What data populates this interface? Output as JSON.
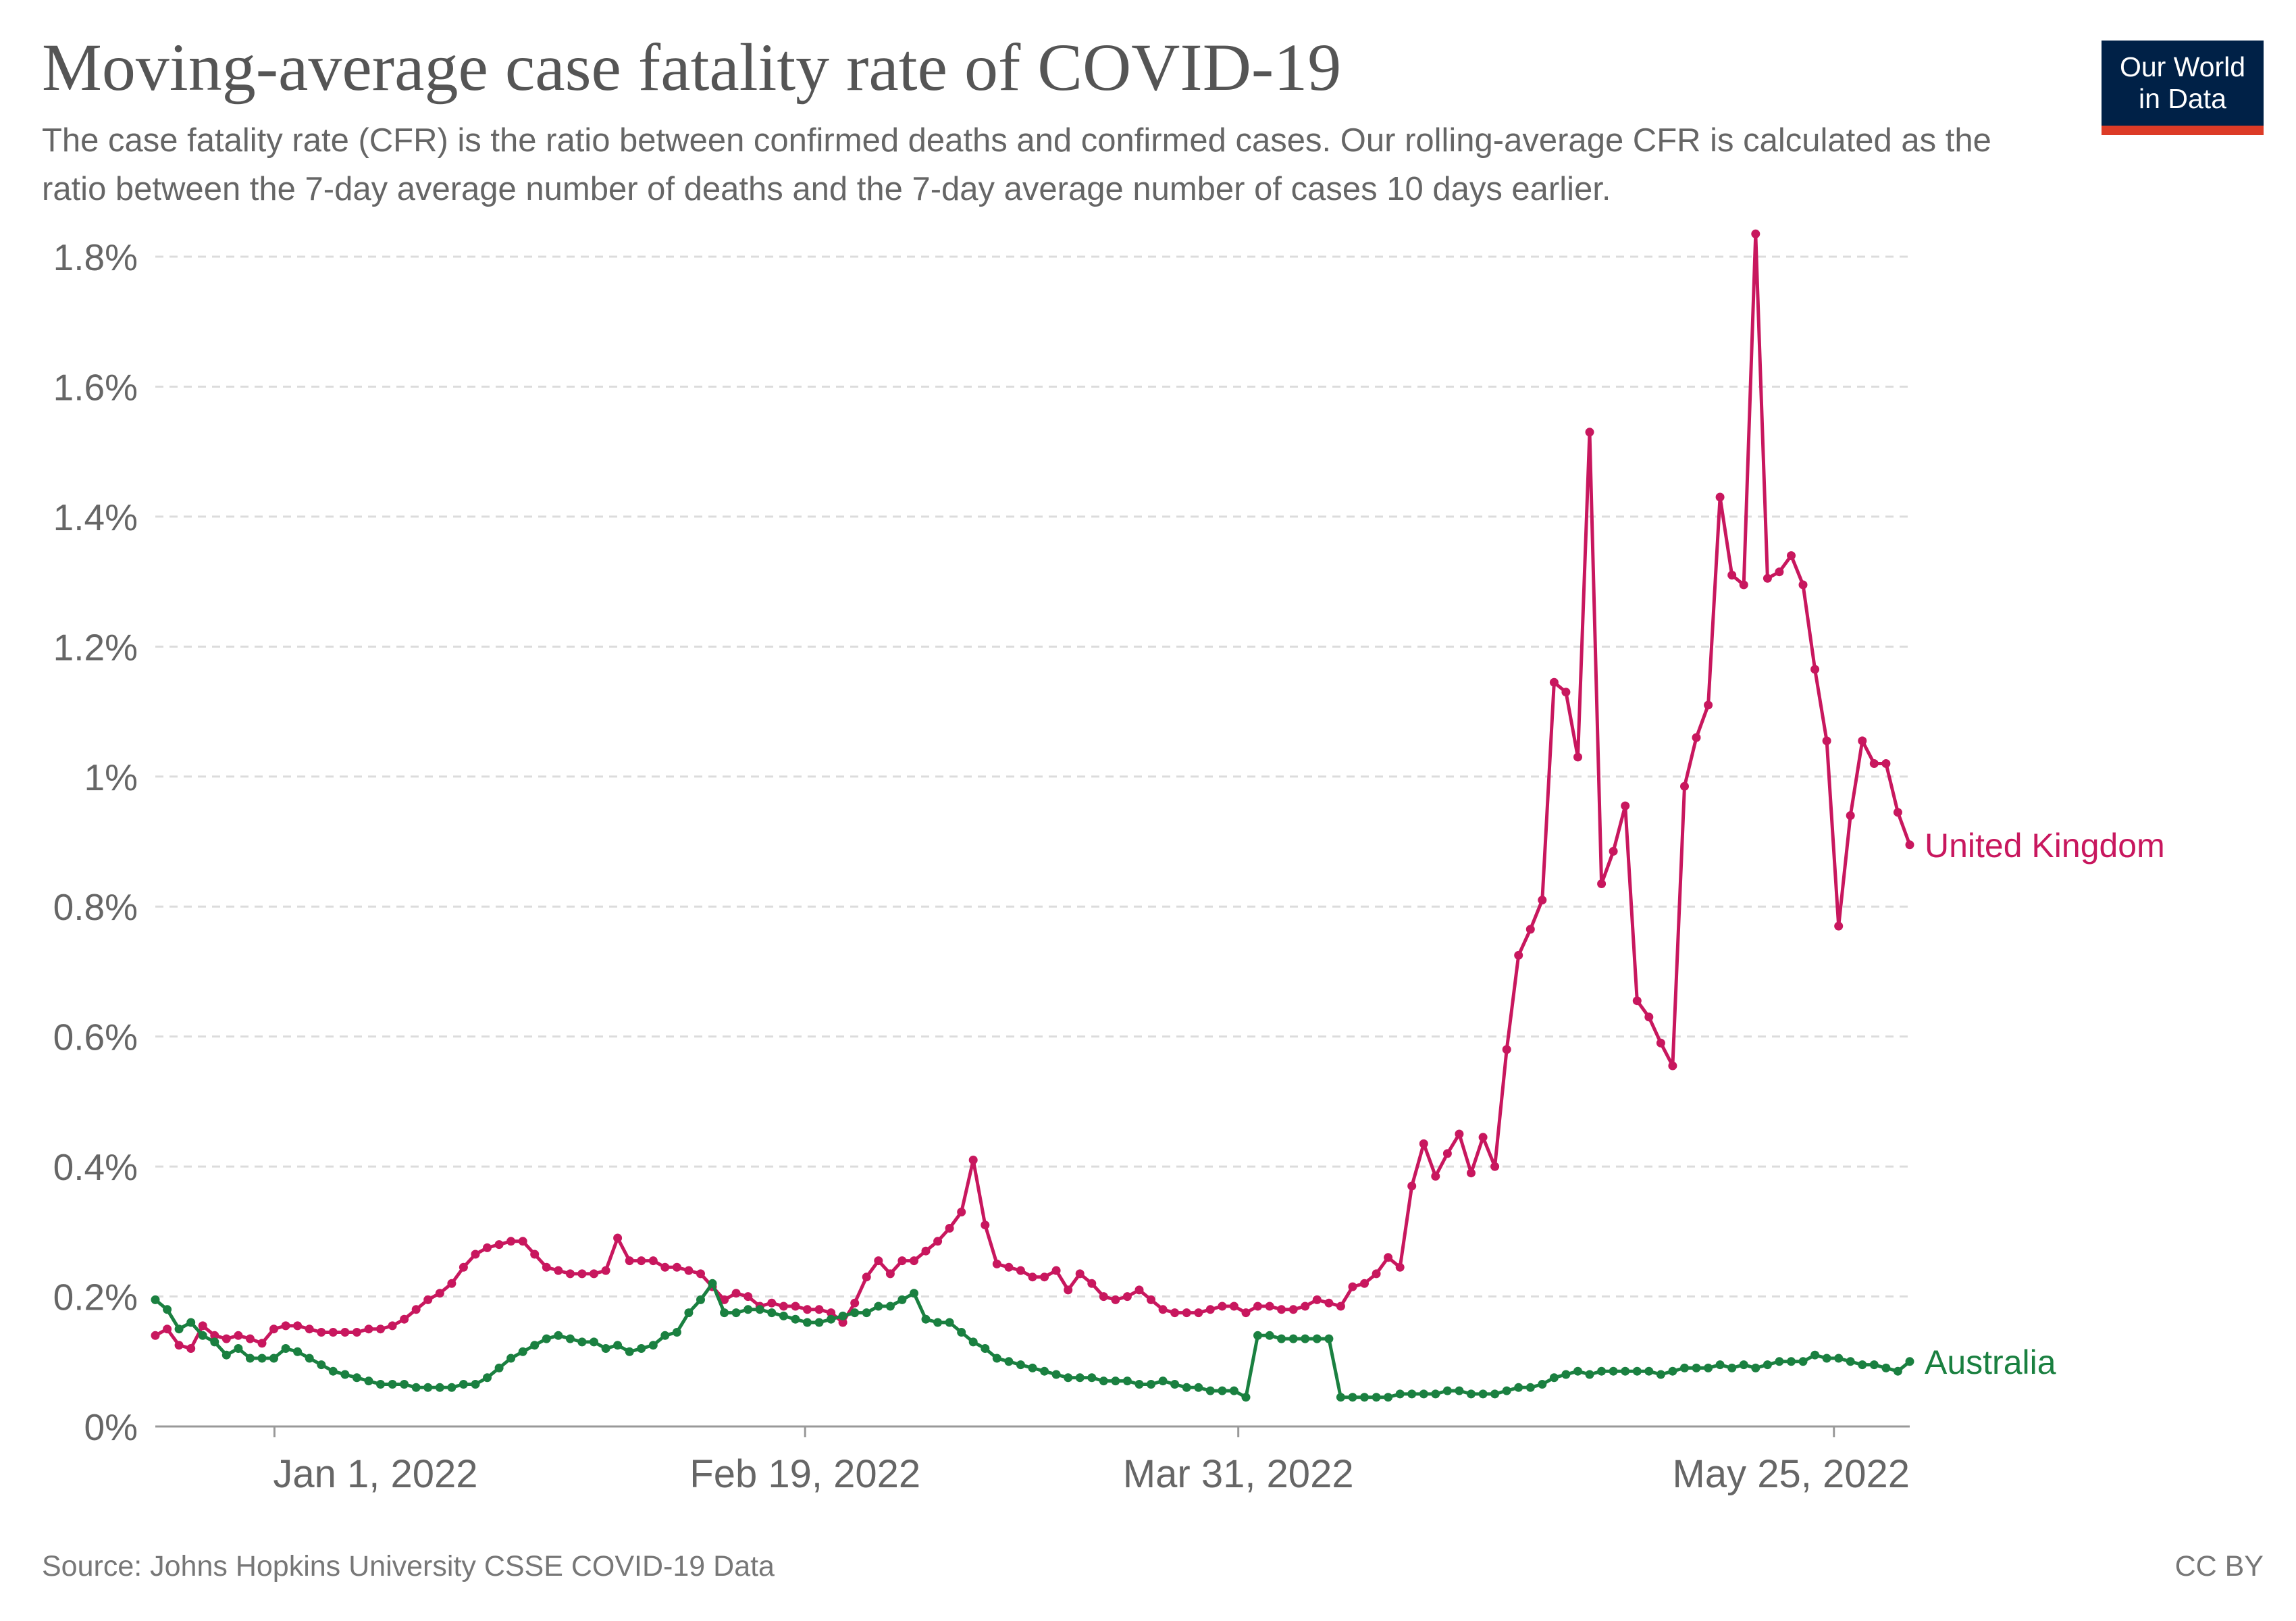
{
  "header": {
    "title": "Moving-average case fatality rate of COVID-19",
    "subtitle": "The case fatality rate (CFR) is the ratio between confirmed deaths and confirmed cases. Our rolling-average CFR is calculated as the ratio between the 7-day average number of deaths and the 7-day average number of cases 10 days earlier."
  },
  "logo": {
    "line1": "Our World",
    "line2": "in Data",
    "bg": "#002147",
    "accent": "#dc3b27"
  },
  "footer": {
    "source": "Source: Johns Hopkins University CSSE COVID-19 Data",
    "license": "CC BY"
  },
  "chart_data": {
    "type": "line",
    "title": "Moving-average case fatality rate of COVID-19",
    "xlabel": "",
    "ylabel": "",
    "x_start": "2021-12-21",
    "x_end": "2022-06-01",
    "xticks": [
      {
        "date": "2022-01-01",
        "label": "Jan 1, 2022"
      },
      {
        "date": "2022-02-19",
        "label": "Feb 19, 2022"
      },
      {
        "date": "2022-03-31",
        "label": "Mar 31, 2022"
      },
      {
        "date": "2022-05-25",
        "label": "May 25, 2022"
      }
    ],
    "ylim": [
      0,
      1.8
    ],
    "yticks": [
      0,
      0.2,
      0.4,
      0.6,
      0.8,
      1.0,
      1.2,
      1.4,
      1.6,
      1.8
    ],
    "ytick_labels": [
      "0%",
      "0.2%",
      "0.4%",
      "0.6%",
      "0.8%",
      "1%",
      "1.2%",
      "1.4%",
      "1.6%",
      "1.8%"
    ],
    "grid": "horizontal dashed",
    "series": [
      {
        "name": "United Kingdom",
        "color": "#c8175e",
        "values": [
          0.14,
          0.15,
          0.125,
          0.12,
          0.155,
          0.14,
          0.135,
          0.14,
          0.135,
          0.128,
          0.15,
          0.155,
          0.155,
          0.15,
          0.145,
          0.145,
          0.145,
          0.145,
          0.15,
          0.15,
          0.155,
          0.165,
          0.18,
          0.195,
          0.205,
          0.22,
          0.245,
          0.265,
          0.275,
          0.28,
          0.285,
          0.285,
          0.265,
          0.245,
          0.24,
          0.235,
          0.235,
          0.235,
          0.24,
          0.29,
          0.255,
          0.255,
          0.255,
          0.245,
          0.245,
          0.24,
          0.235,
          0.215,
          0.195,
          0.205,
          0.2,
          0.185,
          0.19,
          0.185,
          0.185,
          0.18,
          0.18,
          0.175,
          0.16,
          0.19,
          0.23,
          0.255,
          0.235,
          0.255,
          0.255,
          0.27,
          0.285,
          0.305,
          0.33,
          0.41,
          0.31,
          0.25,
          0.245,
          0.24,
          0.23,
          0.23,
          0.24,
          0.21,
          0.235,
          0.22,
          0.2,
          0.195,
          0.2,
          0.21,
          0.195,
          0.18,
          0.175,
          0.175,
          0.175,
          0.18,
          0.185,
          0.185,
          0.175,
          0.185,
          0.185,
          0.18,
          0.18,
          0.185,
          0.195,
          0.19,
          0.185,
          0.215,
          0.22,
          0.235,
          0.26,
          0.245,
          0.37,
          0.435,
          0.385,
          0.42,
          0.45,
          0.39,
          0.445,
          0.4,
          0.58,
          0.725,
          0.765,
          0.81,
          1.145,
          1.13,
          1.03,
          1.53,
          0.835,
          0.885,
          0.955,
          0.655,
          0.63,
          0.59,
          0.555,
          0.985,
          1.06,
          1.11,
          1.43,
          1.31,
          1.295,
          1.835,
          1.305,
          1.315,
          1.34,
          1.295,
          1.165,
          1.055,
          0.77,
          0.94,
          1.055,
          1.02,
          1.02,
          0.945,
          0.895
        ]
      },
      {
        "name": "Australia",
        "color": "#1a8040",
        "values": [
          0.195,
          0.18,
          0.15,
          0.16,
          0.14,
          0.13,
          0.11,
          0.12,
          0.105,
          0.105,
          0.105,
          0.12,
          0.115,
          0.105,
          0.095,
          0.085,
          0.08,
          0.075,
          0.07,
          0.065,
          0.065,
          0.065,
          0.06,
          0.06,
          0.06,
          0.06,
          0.065,
          0.065,
          0.075,
          0.09,
          0.105,
          0.115,
          0.125,
          0.135,
          0.14,
          0.135,
          0.13,
          0.13,
          0.12,
          0.125,
          0.115,
          0.12,
          0.125,
          0.14,
          0.145,
          0.175,
          0.195,
          0.22,
          0.175,
          0.175,
          0.18,
          0.18,
          0.175,
          0.17,
          0.165,
          0.16,
          0.16,
          0.165,
          0.17,
          0.175,
          0.175,
          0.185,
          0.185,
          0.195,
          0.205,
          0.165,
          0.16,
          0.16,
          0.145,
          0.13,
          0.12,
          0.105,
          0.1,
          0.095,
          0.09,
          0.085,
          0.08,
          0.075,
          0.075,
          0.075,
          0.07,
          0.07,
          0.07,
          0.065,
          0.065,
          0.07,
          0.065,
          0.06,
          0.06,
          0.055,
          0.055,
          0.055,
          0.045,
          0.14,
          0.14,
          0.135,
          0.135,
          0.135,
          0.135,
          0.135,
          0.045,
          0.045,
          0.045,
          0.045,
          0.045,
          0.05,
          0.05,
          0.05,
          0.05,
          0.055,
          0.055,
          0.05,
          0.05,
          0.05,
          0.055,
          0.06,
          0.06,
          0.065,
          0.075,
          0.08,
          0.085,
          0.08,
          0.085,
          0.085,
          0.085,
          0.085,
          0.085,
          0.08,
          0.085,
          0.09,
          0.09,
          0.09,
          0.095,
          0.09,
          0.095,
          0.09,
          0.095,
          0.1,
          0.1,
          0.1,
          0.11,
          0.105,
          0.105,
          0.1,
          0.095,
          0.095,
          0.09,
          0.085,
          0.1
        ]
      }
    ]
  }
}
